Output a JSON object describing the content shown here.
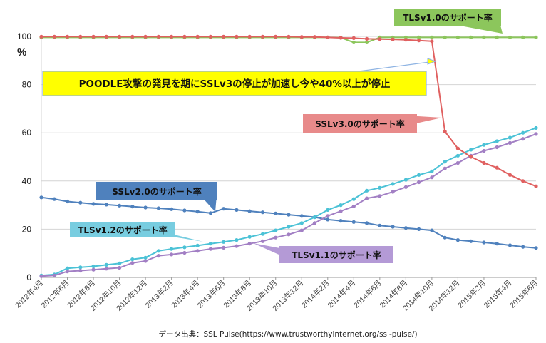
{
  "chart_data": {
    "type": "line",
    "title": "",
    "ylabel": "%",
    "xlabel": "",
    "ylim": [
      0,
      100
    ],
    "yticks": [
      "0",
      "20",
      "40",
      "60",
      "80",
      "100"
    ],
    "categories": [
      "2012年4月",
      "2012年5月",
      "2012年6月",
      "2012年7月",
      "2012年8月",
      "2012年9月",
      "2012年10月",
      "2012年11月",
      "2012年12月",
      "2013年1月",
      "2013年2月",
      "2013年3月",
      "2013年4月",
      "2013年5月",
      "2013年6月",
      "2013年7月",
      "2013年8月",
      "2013年9月",
      "2013年10月",
      "2013年11月",
      "2013年12月",
      "2014年1月",
      "2014年2月",
      "2014年3月",
      "2014年4月",
      "2014年5月",
      "2014年6月",
      "2014年7月",
      "2014年8月",
      "2014年9月",
      "2014年10月",
      "2014年11月",
      "2014年12月",
      "2015年1月",
      "2015年2月",
      "2015年3月",
      "2015年4月",
      "2015年5月",
      "2015年6月"
    ],
    "tick_labels": [
      "2012年4月",
      "2012年6月",
      "2012年8月",
      "2012年10月",
      "2012年12月",
      "2013年2月",
      "2013年4月",
      "2013年6月",
      "2013年8月",
      "2013年10月",
      "2013年12月",
      "2014年2月",
      "2014年4月",
      "2014年6月",
      "2014年8月",
      "2014年10月",
      "2014年12月",
      "2015年2月",
      "2015年4月",
      "2015年6月"
    ],
    "series": [
      {
        "name": "SSLv3.0のサポート率",
        "color": "#e06060",
        "values": [
          99.9,
          99.9,
          99.9,
          99.9,
          99.9,
          99.9,
          99.9,
          99.9,
          99.9,
          99.9,
          99.9,
          99.9,
          99.9,
          99.9,
          99.9,
          99.9,
          99.9,
          99.9,
          99.9,
          99.9,
          99.8,
          99.8,
          99.6,
          99.4,
          99.3,
          99.0,
          98.9,
          98.8,
          98.6,
          98.3,
          98.0,
          60.5,
          53.5,
          50.0,
          47.5,
          45.5,
          42.5,
          40.0,
          37.8
        ]
      },
      {
        "name": "TLSv1.0のサポート率",
        "color": "#8cc65c",
        "values": [
          99.6,
          99.6,
          99.6,
          99.6,
          99.6,
          99.6,
          99.6,
          99.6,
          99.6,
          99.6,
          99.6,
          99.6,
          99.6,
          99.6,
          99.6,
          99.6,
          99.6,
          99.6,
          99.6,
          99.6,
          99.6,
          99.6,
          99.6,
          99.5,
          97.5,
          97.5,
          99.6,
          99.6,
          99.6,
          99.6,
          99.6,
          99.6,
          99.6,
          99.6,
          99.6,
          99.6,
          99.6,
          99.6,
          99.6
        ]
      },
      {
        "name": "SSLv2.0のサポート率",
        "color": "#4f81bd",
        "values": [
          33.2,
          32.5,
          31.5,
          31.0,
          30.5,
          30.2,
          29.8,
          29.4,
          29.0,
          28.7,
          28.3,
          27.8,
          27.3,
          26.7,
          28.5,
          28.0,
          27.5,
          27.0,
          26.5,
          26.0,
          25.5,
          25.0,
          24.0,
          23.5,
          23.0,
          22.5,
          21.5,
          21.0,
          20.5,
          20.0,
          19.5,
          16.5,
          15.5,
          15.0,
          14.5,
          14.0,
          13.3,
          12.7,
          12.2
        ]
      },
      {
        "name": "TLSv1.2のサポート率",
        "color": "#4bc2d6",
        "values": [
          0.8,
          1.2,
          3.8,
          4.2,
          4.6,
          5.2,
          5.8,
          7.5,
          8.2,
          11.0,
          11.8,
          12.5,
          13.2,
          14.0,
          14.7,
          15.5,
          16.8,
          18.0,
          19.5,
          21.0,
          22.5,
          25.0,
          28.0,
          30.0,
          32.5,
          36.0,
          37.2,
          38.8,
          40.5,
          42.5,
          44.0,
          48.0,
          50.5,
          53.0,
          55.0,
          56.5,
          58.0,
          60.0,
          62.0
        ]
      },
      {
        "name": "TLSv1.1のサポート率",
        "color": "#a27fc4",
        "values": [
          0.5,
          0.8,
          2.5,
          2.8,
          3.2,
          3.6,
          4.0,
          6.0,
          6.8,
          9.0,
          9.5,
          10.2,
          11.0,
          11.8,
          12.3,
          13.0,
          14.0,
          15.0,
          16.5,
          17.8,
          19.5,
          22.5,
          25.5,
          27.5,
          29.5,
          32.8,
          33.8,
          35.5,
          37.5,
          39.5,
          41.5,
          45.2,
          47.5,
          50.5,
          52.5,
          54.0,
          55.8,
          57.5,
          59.5
        ]
      }
    ],
    "annotations": {
      "headline": "POODLE攻撃の発見を期にSSLv3の停止が加速し今や40%以上が停止",
      "source": "データ出典：SSL Pulse(https://www.trustworthyinternet.org/ssl-pulse/)"
    }
  },
  "colors": {
    "headline_bg": "#ffff00",
    "headline_border": "#8fb4e3",
    "grid": "#d4d4d4",
    "axis": "#9a9a9a",
    "callout_green_bg": "#8cc65c",
    "callout_red_bg": "#e88a8a",
    "callout_blue_bg": "#4f81bd",
    "callout_cyan_bg": "#78cde0",
    "callout_purple_bg": "#b49ad6"
  }
}
